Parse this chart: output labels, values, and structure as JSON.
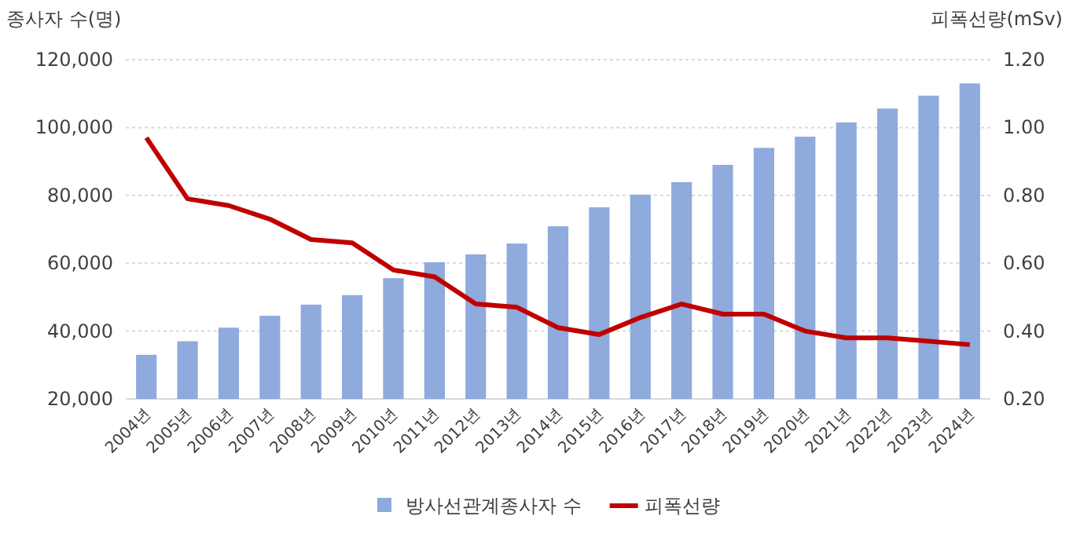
{
  "chart_data": {
    "type": "bar",
    "ylabel": "종사자 수(명)",
    "y2label": "피폭선량(mSv)",
    "categories": [
      "2004년",
      "2005년",
      "2006년",
      "2007년",
      "2008년",
      "2009년",
      "2010년",
      "2011년",
      "2012년",
      "2013년",
      "2014년",
      "2015년",
      "2016년",
      "2017년",
      "2018년",
      "2019년",
      "2020년",
      "2021년",
      "2022년",
      "2023년",
      "2024년"
    ],
    "series": [
      {
        "name": "방사선관계종사자 수",
        "color": "#8faadc",
        "values": [
          33000,
          37000,
          41000,
          44500,
          47800,
          50600,
          55600,
          60300,
          62600,
          65800,
          70900,
          76500,
          80200,
          83900,
          89000,
          94000,
          97300,
          101500,
          105600,
          109400,
          113000
        ]
      },
      {
        "name": "피폭선량",
        "type": "line",
        "axis": "y2",
        "color": "#c00000",
        "values": [
          0.97,
          0.79,
          0.77,
          0.73,
          0.67,
          0.66,
          0.58,
          0.56,
          0.48,
          0.47,
          0.41,
          0.39,
          0.44,
          0.48,
          0.45,
          0.45,
          0.4,
          0.38,
          0.38,
          0.37,
          0.36
        ]
      }
    ],
    "ylim": [
      20000,
      120000
    ],
    "yticks": [
      {
        "value": 20000,
        "label": "20,000"
      },
      {
        "value": 40000,
        "label": "40,000"
      },
      {
        "value": 60000,
        "label": "60,000"
      },
      {
        "value": 80000,
        "label": "80,000"
      },
      {
        "value": 100000,
        "label": "100,000"
      },
      {
        "value": 120000,
        "label": "120,000"
      }
    ],
    "y2lim": [
      0.2,
      1.2
    ],
    "y2ticks": [
      {
        "value": 0.2,
        "label": "0.20"
      },
      {
        "value": 0.4,
        "label": "0.40"
      },
      {
        "value": 0.6,
        "label": "0.60"
      },
      {
        "value": 0.8,
        "label": "0.80"
      },
      {
        "value": 1.0,
        "label": "1.00"
      },
      {
        "value": 1.2,
        "label": "1.20"
      }
    ],
    "grid": "y",
    "legend": "bottom"
  }
}
